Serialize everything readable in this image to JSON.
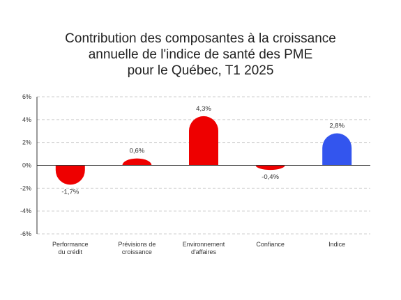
{
  "chart_data": {
    "type": "bar",
    "title_lines": [
      "Contribution des composantes à la croissance",
      "annuelle de l'indice de santé des PME",
      "pour le Québec, T1 2025"
    ],
    "categories": [
      [
        "Performance",
        "du crédit"
      ],
      [
        "Prévisions de",
        "croissance"
      ],
      [
        "Environnement",
        "d'affaires"
      ],
      [
        "Confiance"
      ],
      [
        "Indice"
      ]
    ],
    "values": [
      -1.7,
      0.6,
      4.3,
      -0.4,
      2.8
    ],
    "value_labels": [
      "-1,7%",
      "0,6%",
      "4,3%",
      "-0,4%",
      "2,8%"
    ],
    "ylim": [
      -6,
      6
    ],
    "yticks": [
      6,
      4,
      2,
      0,
      -2,
      -4,
      -6
    ],
    "ytick_labels": [
      "6%",
      "4%",
      "2%",
      "0%",
      "-2%",
      "-4%",
      "-6%"
    ],
    "xlabel": "",
    "ylabel": "",
    "grid": "horizontal dashed",
    "bar_colors": [
      "#ee0000",
      "#ee0000",
      "#ee0000",
      "#ee0000",
      "#3355ee"
    ],
    "axis_color": "#333333",
    "grid_color": "#cccccc"
  }
}
